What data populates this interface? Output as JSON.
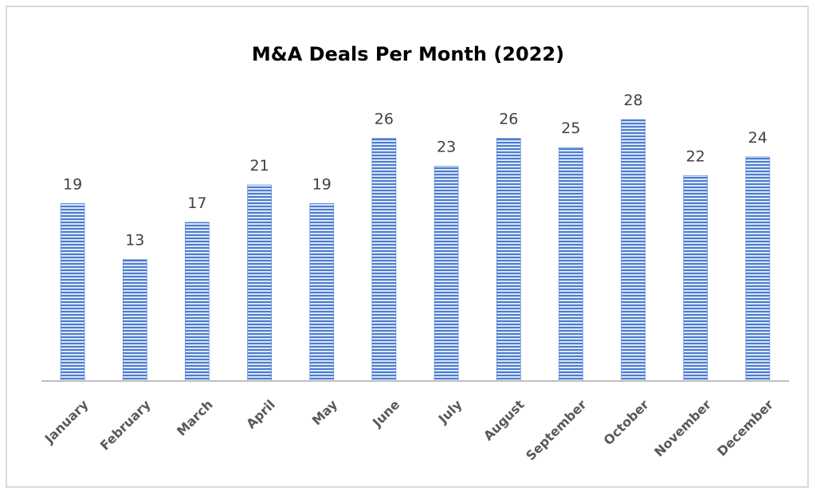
{
  "chart_data": {
    "type": "bar",
    "title": "M&A Deals Per Month (2022)",
    "categories": [
      "January",
      "February",
      "March",
      "April",
      "May",
      "June",
      "July",
      "August",
      "September",
      "October",
      "November",
      "December"
    ],
    "values": [
      19,
      13,
      17,
      21,
      19,
      26,
      23,
      26,
      25,
      28,
      22,
      24
    ],
    "xlabel": "",
    "ylabel": "",
    "ylim": [
      0,
      30
    ],
    "grid": false,
    "legend": "none",
    "data_labels": true,
    "colors": {
      "bar_stripe_light": "#dbe6f7",
      "bar_stripe_dark": "#4a7bd0",
      "axis_line": "#bfbfbf",
      "frame_border": "#d9d9d9",
      "title": "#000000",
      "data_label": "#404040",
      "tick_label": "#595959"
    }
  }
}
